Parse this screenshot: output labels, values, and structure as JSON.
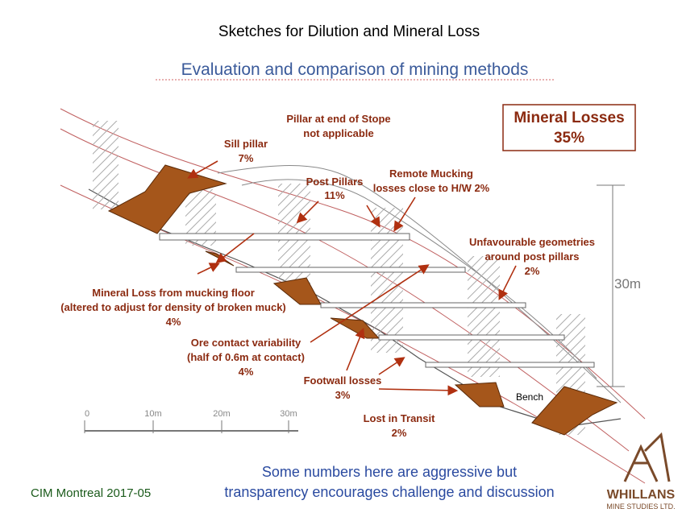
{
  "header": {
    "title": "Sketches for Dilution and Mineral Loss",
    "subtitle": "Evaluation and comparison of mining methods"
  },
  "total": {
    "label": "Mineral Losses",
    "value": "35%"
  },
  "annotations": [
    {
      "lines": [
        "Pillar at end of Stope",
        "not applicable"
      ]
    },
    {
      "lines": [
        "Sill pillar",
        "7%"
      ]
    },
    {
      "lines": [
        "Post Pillars",
        "11%"
      ]
    },
    {
      "lines": [
        "Remote Mucking",
        "losses close to H/W 2%"
      ]
    },
    {
      "lines": [
        "Unfavourable geometries",
        "around post pillars",
        "2%"
      ]
    },
    {
      "lines": [
        "Mineral Loss from mucking floor",
        "(altered to adjust for density of broken muck)",
        "4%"
      ]
    },
    {
      "lines": [
        "Ore contact variability",
        "(half of 0.6m at contact)",
        "4%"
      ]
    },
    {
      "lines": [
        "Footwall losses",
        "3%"
      ]
    },
    {
      "lines": [
        "Lost in Transit",
        "2%"
      ]
    }
  ],
  "bench": "Bench",
  "height_label": "30m",
  "scale": [
    "0",
    "10m",
    "20m",
    "30m"
  ],
  "footer": {
    "message": [
      "Some numbers here are aggressive but",
      "transparency encourages challenge and discussion"
    ],
    "event": "CIM Montreal 2017-05",
    "logo": [
      "WHILLANS",
      "MINE STUDIES LTD."
    ]
  }
}
